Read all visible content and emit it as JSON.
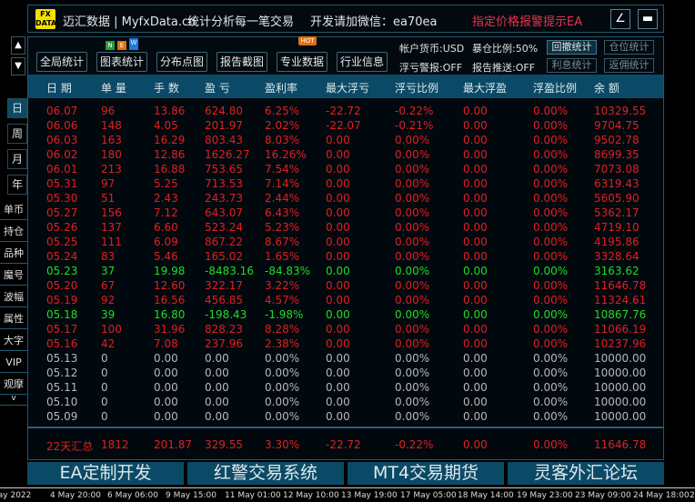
{
  "title": {
    "logo": "FX DATA",
    "brand": "迈汇数据 | MyfxData.cn",
    "slogan": "统计分析每一笔交易",
    "contact": "开发请加微信：ea70ea",
    "promo": "指定价格报警提示EA",
    "btn1": "∠",
    "btn2": "▬"
  },
  "toolbar": {
    "buttons": [
      "全局统计",
      "图表统计",
      "分布点图",
      "报告截图",
      "专业数据",
      "行业信息"
    ],
    "new_badge": [
      "N",
      "E",
      "W"
    ],
    "hot_badge": "HOT",
    "info": [
      "帐户货币:USD",
      "暴仓比例:50%",
      "浮亏警报:OFF",
      "报告推送:OFF"
    ],
    "side_buttons": [
      "回撤统计",
      "仓位统计",
      "利息统计",
      "返佣统计"
    ]
  },
  "sidebar": {
    "up": "▲",
    "down": "▼",
    "periods": [
      "日",
      "周",
      "月",
      "年"
    ],
    "items": [
      "单币",
      "持仓",
      "品种",
      "魔号",
      "波幅",
      "属性",
      "大字",
      "VIP",
      "观摩"
    ],
    "more": "v"
  },
  "columns": [
    "日 期",
    "单 量",
    "手 数",
    "盈 亏",
    "盈利率",
    "最大浮亏",
    "浮亏比例",
    "最大浮盈",
    "浮盈比例",
    "余 额"
  ],
  "colors": {
    "profit": "#e02020",
    "loss": "#22dd22",
    "neutral": "#b8b8b8",
    "header": "#0b4a66"
  },
  "rows": [
    {
      "c": "red",
      "v": [
        "06.07",
        "96",
        "13.86",
        "624.80",
        "6.25%",
        "-22.72",
        "-0.22%",
        "0.00",
        "0.00%",
        "10329.55"
      ]
    },
    {
      "c": "red",
      "v": [
        "06.06",
        "148",
        "4.05",
        "201.97",
        "2.02%",
        "-22.07",
        "-0.21%",
        "0.00",
        "0.00%",
        "9704.75"
      ]
    },
    {
      "c": "red",
      "v": [
        "06.03",
        "163",
        "16.29",
        "803.43",
        "8.03%",
        "0.00",
        "0.00%",
        "0.00",
        "0.00%",
        "9502.78"
      ]
    },
    {
      "c": "red",
      "v": [
        "06.02",
        "180",
        "12.86",
        "1626.27",
        "16.26%",
        "0.00",
        "0.00%",
        "0.00",
        "0.00%",
        "8699.35"
      ]
    },
    {
      "c": "red",
      "v": [
        "06.01",
        "213",
        "16.88",
        "753.65",
        "7.54%",
        "0.00",
        "0.00%",
        "0.00",
        "0.00%",
        "7073.08"
      ]
    },
    {
      "c": "red",
      "v": [
        "05.31",
        "97",
        "5.25",
        "713.53",
        "7.14%",
        "0.00",
        "0.00%",
        "0.00",
        "0.00%",
        "6319.43"
      ]
    },
    {
      "c": "red",
      "v": [
        "05.30",
        "51",
        "2.43",
        "243.73",
        "2.44%",
        "0.00",
        "0.00%",
        "0.00",
        "0.00%",
        "5605.90"
      ]
    },
    {
      "c": "red",
      "v": [
        "05.27",
        "156",
        "7.12",
        "643.07",
        "6.43%",
        "0.00",
        "0.00%",
        "0.00",
        "0.00%",
        "5362.17"
      ]
    },
    {
      "c": "red",
      "v": [
        "05.26",
        "137",
        "6.60",
        "523.24",
        "5.23%",
        "0.00",
        "0.00%",
        "0.00",
        "0.00%",
        "4719.10"
      ]
    },
    {
      "c": "red",
      "v": [
        "05.25",
        "111",
        "6.09",
        "867.22",
        "8.67%",
        "0.00",
        "0.00%",
        "0.00",
        "0.00%",
        "4195.86"
      ]
    },
    {
      "c": "red",
      "v": [
        "05.24",
        "83",
        "5.46",
        "165.02",
        "1.65%",
        "0.00",
        "0.00%",
        "0.00",
        "0.00%",
        "3328.64"
      ]
    },
    {
      "c": "green",
      "v": [
        "05.23",
        "37",
        "19.98",
        "-8483.16",
        "-84.83%",
        "0.00",
        "0.00%",
        "0.00",
        "0.00%",
        "3163.62"
      ]
    },
    {
      "c": "red",
      "v": [
        "05.20",
        "67",
        "12.60",
        "322.17",
        "3.22%",
        "0.00",
        "0.00%",
        "0.00",
        "0.00%",
        "11646.78"
      ]
    },
    {
      "c": "red",
      "v": [
        "05.19",
        "92",
        "16.56",
        "456.85",
        "4.57%",
        "0.00",
        "0.00%",
        "0.00",
        "0.00%",
        "11324.61"
      ]
    },
    {
      "c": "green",
      "v": [
        "05.18",
        "39",
        "16.80",
        "-198.43",
        "-1.98%",
        "0.00",
        "0.00%",
        "0.00",
        "0.00%",
        "10867.76"
      ]
    },
    {
      "c": "red",
      "v": [
        "05.17",
        "100",
        "31.96",
        "828.23",
        "8.28%",
        "0.00",
        "0.00%",
        "0.00",
        "0.00%",
        "11066.19"
      ]
    },
    {
      "c": "red",
      "v": [
        "05.16",
        "42",
        "7.08",
        "237.96",
        "2.38%",
        "0.00",
        "0.00%",
        "0.00",
        "0.00%",
        "10237.96"
      ]
    },
    {
      "c": "gray",
      "v": [
        "05.13",
        "0",
        "0.00",
        "0.00",
        "0.00%",
        "0.00",
        "0.00%",
        "0.00",
        "0.00%",
        "10000.00"
      ]
    },
    {
      "c": "gray",
      "v": [
        "05.12",
        "0",
        "0.00",
        "0.00",
        "0.00%",
        "0.00",
        "0.00%",
        "0.00",
        "0.00%",
        "10000.00"
      ]
    },
    {
      "c": "gray",
      "v": [
        "05.11",
        "0",
        "0.00",
        "0.00",
        "0.00%",
        "0.00",
        "0.00%",
        "0.00",
        "0.00%",
        "10000.00"
      ]
    },
    {
      "c": "gray",
      "v": [
        "05.10",
        "0",
        "0.00",
        "0.00",
        "0.00%",
        "0.00",
        "0.00%",
        "0.00",
        "0.00%",
        "10000.00"
      ]
    },
    {
      "c": "gray",
      "v": [
        "05.09",
        "0",
        "0.00",
        "0.00",
        "0.00%",
        "0.00",
        "0.00%",
        "0.00",
        "0.00%",
        "10000.00"
      ]
    }
  ],
  "summary": [
    "22天汇总",
    "1812",
    "201.87",
    "329.55",
    "3.30%",
    "-22.72",
    "-0.22%",
    "0.00",
    "0.00%",
    "11646.78"
  ],
  "bottom_buttons": [
    "EA定制开发",
    "红警交易系统",
    "MT4交易期货",
    "灵客外汇论坛"
  ],
  "time_axis": [
    "May 2022",
    "4 May 20:00",
    "6 May 06:00",
    "9 May 15:00",
    "11 May 01:00",
    "12 May 10:00",
    "13 May 19:00",
    "17 May 05:00",
    "18 May 14:00",
    "19 May 23:00",
    "23 May 09:00",
    "24 May 18:00",
    "2"
  ]
}
